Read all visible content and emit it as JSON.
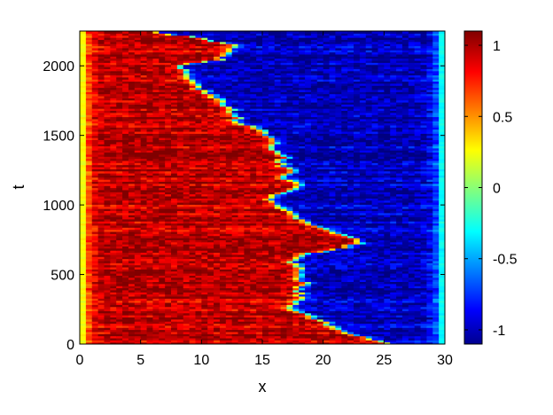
{
  "chart_data": {
    "type": "heatmap",
    "title": "",
    "xlabel": "x",
    "ylabel": "t",
    "xlim": [
      0,
      30
    ],
    "ylim": [
      0,
      2250
    ],
    "x_ticks": [
      0,
      5,
      10,
      15,
      20,
      25,
      30
    ],
    "y_ticks": [
      0,
      500,
      1000,
      1500,
      2000
    ],
    "colorbar": {
      "colormap": "jet",
      "clim": [
        -1.1,
        1.1
      ],
      "ticks": [
        1,
        0.5,
        0,
        -0.5,
        -1
      ],
      "tick_labels": [
        "1",
        "0.5",
        "0",
        "-0.5",
        "-1"
      ]
    },
    "description_of_field": "two-phase field: value about +1 for x below a wandering interface, about -1 above it",
    "interface": {
      "t": [
        0,
        50,
        100,
        150,
        200,
        250,
        300,
        350,
        400,
        450,
        500,
        550,
        600,
        650,
        700,
        750,
        800,
        850,
        900,
        950,
        1000,
        1050,
        1100,
        1150,
        1200,
        1250,
        1300,
        1350,
        1400,
        1450,
        1500,
        1550,
        1600,
        1650,
        1700,
        1750,
        1800,
        1850,
        1900,
        1950,
        2000,
        2050,
        2100,
        2150,
        2200,
        2250
      ],
      "x": [
        25.5,
        23.5,
        21.5,
        20.2,
        19.2,
        17.5,
        17.8,
        18.2,
        17.8,
        18.5,
        17.8,
        18.0,
        17.5,
        18.5,
        22.0,
        23.5,
        21.0,
        19.5,
        18.0,
        17.0,
        16.5,
        15.5,
        17.0,
        18.0,
        16.5,
        17.5,
        16.5,
        17.0,
        15.5,
        16.5,
        15.5,
        14.5,
        13.0,
        12.8,
        12.0,
        11.5,
        10.5,
        9.5,
        9.0,
        9.0,
        8.0,
        11.5,
        12.5,
        13.0,
        10.0,
        6.0
      ]
    },
    "colors": {
      "background": "#ffffff",
      "axes": "#000000",
      "hot": "#c40000",
      "cold": "#1020d0"
    }
  }
}
